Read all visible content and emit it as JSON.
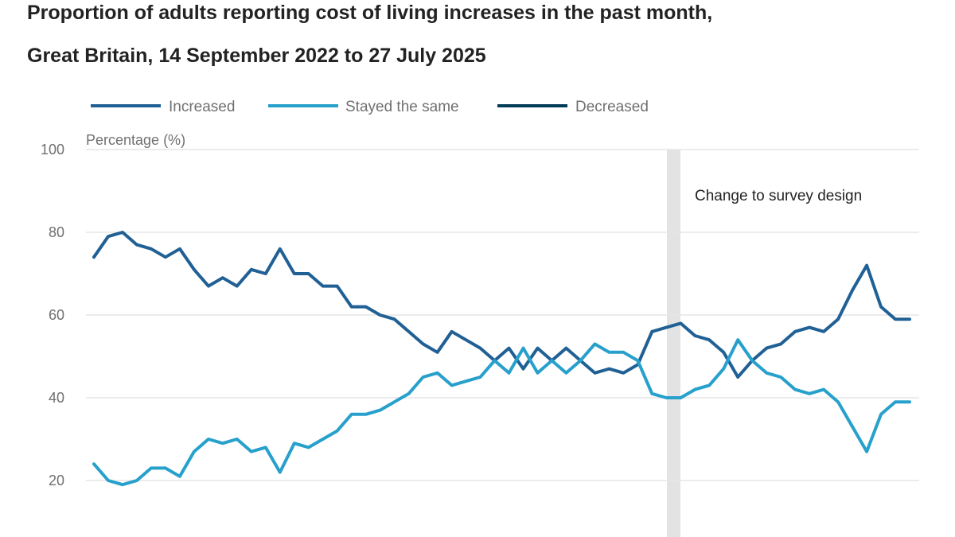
{
  "chart_data": {
    "type": "line",
    "title_line1": "Proportion of adults reporting cost of living increases in the past month,",
    "title_line2": "Great Britain, 14 September 2022 to 27 July 2025",
    "ylabel": "Percentage (%)",
    "ylim": [
      15,
      100
    ],
    "yticks": [
      "100",
      "80",
      "60",
      "40",
      "20"
    ],
    "annotation": "Change to survey design",
    "break_after_index": 40,
    "series": [
      {
        "name": "Increased",
        "color": "#206095",
        "values": [
          74,
          79,
          80,
          77,
          76,
          74,
          76,
          71,
          67,
          69,
          67,
          71,
          70,
          76,
          70,
          70,
          67,
          67,
          62,
          62,
          60,
          59,
          56,
          53,
          51,
          56,
          54,
          52,
          49,
          52,
          47,
          52,
          49,
          52,
          49,
          46,
          47,
          46,
          48,
          56,
          57,
          58,
          55,
          54,
          51,
          45,
          49,
          52,
          53,
          56,
          57,
          56,
          59,
          66,
          72,
          62,
          59,
          59
        ]
      },
      {
        "name": "Stayed the same",
        "color": "#27a0cc",
        "values": [
          24,
          20,
          19,
          20,
          23,
          23,
          21,
          27,
          30,
          29,
          30,
          27,
          28,
          22,
          29,
          28,
          30,
          32,
          36,
          36,
          37,
          39,
          41,
          45,
          46,
          43,
          44,
          45,
          49,
          46,
          52,
          46,
          49,
          46,
          49,
          53,
          51,
          51,
          49,
          41,
          40,
          40,
          42,
          43,
          47,
          54,
          49,
          46,
          45,
          42,
          41,
          42,
          39,
          33,
          27,
          36,
          39,
          39
        ]
      },
      {
        "name": "Decreased",
        "color": "#003c57",
        "values": []
      }
    ]
  }
}
